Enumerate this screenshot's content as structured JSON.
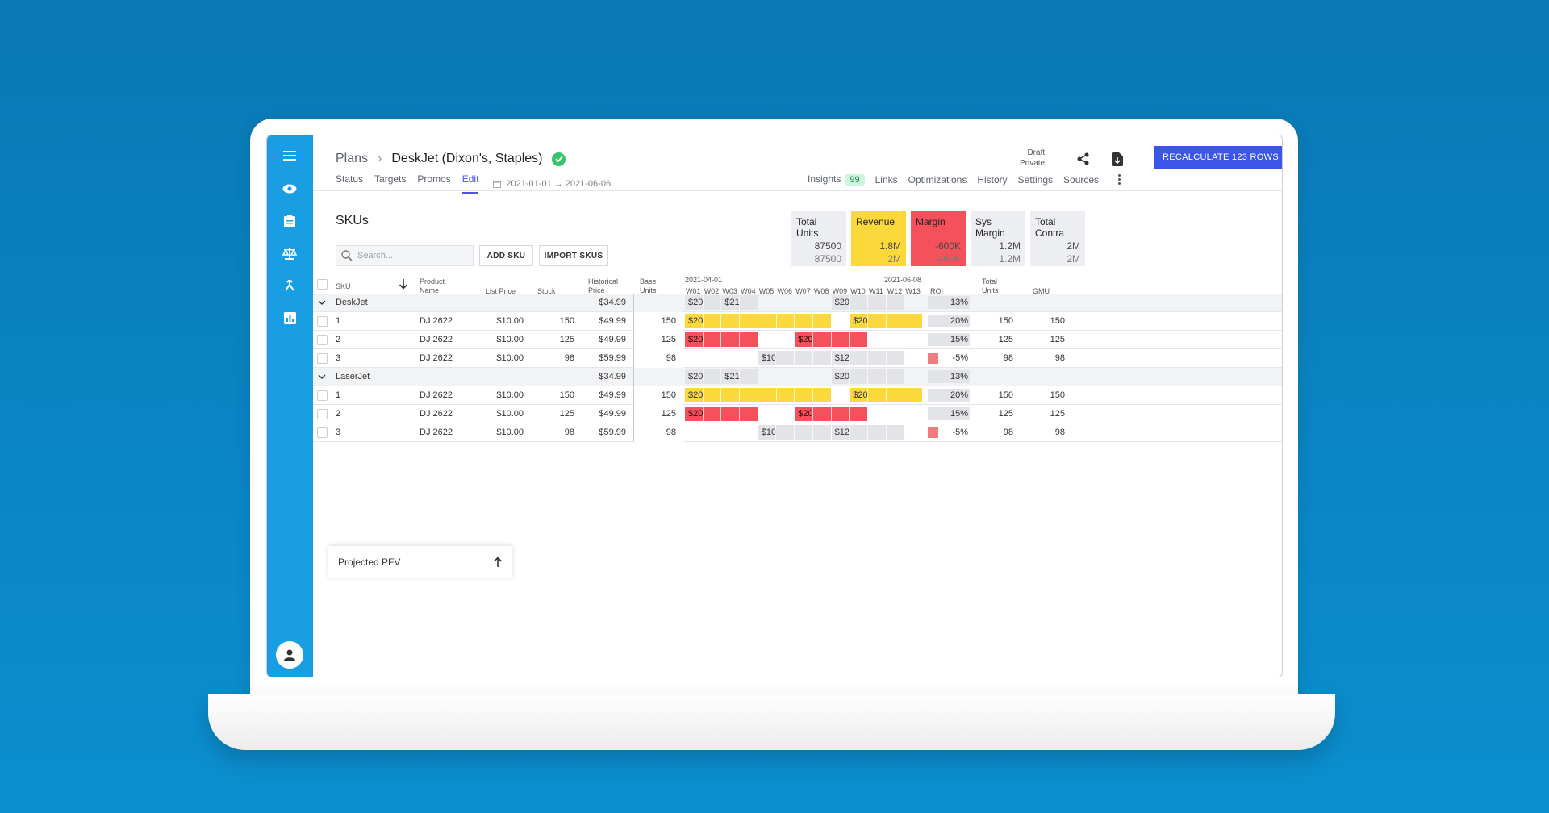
{
  "breadcrumb": {
    "root": "Plans",
    "title": "DeskJet (Dixon's, Staples)"
  },
  "status": {
    "line1": "Draft",
    "line2": "Private"
  },
  "recalculate_label": "RECALCULATE 123 ROWS",
  "tabs": [
    "Status",
    "Targets",
    "Promos",
    "Edit"
  ],
  "date_range": "2021-01-01 → 2021-06-06",
  "right_tabs": {
    "insights": "Insights",
    "insights_count": "99",
    "links": "Links",
    "optimizations": "Optimizations",
    "history": "History",
    "settings": "Settings",
    "sources": "Sources"
  },
  "section_title": "SKUs",
  "search_placeholder": "Search...",
  "add_sku": "ADD SKU",
  "import_skus": "IMPORT SKUS",
  "kpis": [
    {
      "label": "Total Units",
      "v1": "87500",
      "v2": "87500",
      "color": "#eceef1"
    },
    {
      "label": "Revenue",
      "v1": "1.8M",
      "v2": "2M",
      "color": "#fbd93a"
    },
    {
      "label": "Margin",
      "v1": "-600K",
      "v2": "-460K",
      "color": "#f4515c"
    },
    {
      "label": "Sys Margin",
      "v1": "1.2M",
      "v2": "1.2M",
      "color": "#eceef1"
    },
    {
      "label": "Total Contra",
      "v1": "2M",
      "v2": "2M",
      "color": "#eceef1"
    }
  ],
  "columns": {
    "sku": "SKU",
    "product_name": "Product Name",
    "list_price": "List Price",
    "stock": "Stock",
    "historical_price": "Historical Price",
    "base_units": "Base Units",
    "date_start": "2021-04-01",
    "date_end": "2021-06-08",
    "roi": "ROI",
    "total_units": "Total Units",
    "gmu": "GMU"
  },
  "weeks": [
    "W01",
    "W02",
    "W03",
    "W04",
    "W05",
    "W06",
    "W07",
    "W08",
    "W09",
    "W10",
    "W11",
    "W12",
    "W13"
  ],
  "groups": [
    {
      "name": "DeskJet",
      "hist": "$34.99",
      "roi": "13%",
      "rows": [
        {
          "sku": "1",
          "product": "DJ 2622",
          "list": "$10.00",
          "stock": "150",
          "hist": "$49.99",
          "base": "150",
          "roi": "20%",
          "total": "150",
          "gmu": "150"
        },
        {
          "sku": "2",
          "product": "DJ 2622",
          "list": "$10.00",
          "stock": "125",
          "hist": "$49.99",
          "base": "125",
          "roi": "15%",
          "total": "125",
          "gmu": "125"
        },
        {
          "sku": "3",
          "product": "DJ 2622",
          "list": "$10.00",
          "stock": "98",
          "hist": "$59.99",
          "base": "98",
          "roi": "-5%",
          "total": "98",
          "gmu": "98"
        }
      ]
    },
    {
      "name": "LaserJet",
      "hist": "$34.99",
      "roi": "13%",
      "rows": [
        {
          "sku": "1",
          "product": "DJ 2622",
          "list": "$10.00",
          "stock": "150",
          "hist": "$49.99",
          "base": "150",
          "roi": "20%",
          "total": "150",
          "gmu": "150"
        },
        {
          "sku": "2",
          "product": "DJ 2622",
          "list": "$10.00",
          "stock": "125",
          "hist": "$49.99",
          "base": "125",
          "roi": "15%",
          "total": "125",
          "gmu": "125"
        },
        {
          "sku": "3",
          "product": "DJ 2622",
          "list": "$10.00",
          "stock": "98",
          "hist": "$59.99",
          "base": "98",
          "roi": "-5%",
          "total": "98",
          "gmu": "98"
        }
      ]
    }
  ],
  "promo_labels": {
    "g_a": "$20",
    "g_b": "$21",
    "g_c": "$20",
    "r1_a": "$20",
    "r1_b": "$20",
    "r2_a": "$20",
    "r2_b": "$20",
    "r3_a": "$10",
    "r3_b": "$12"
  },
  "projected": "Projected PFV"
}
